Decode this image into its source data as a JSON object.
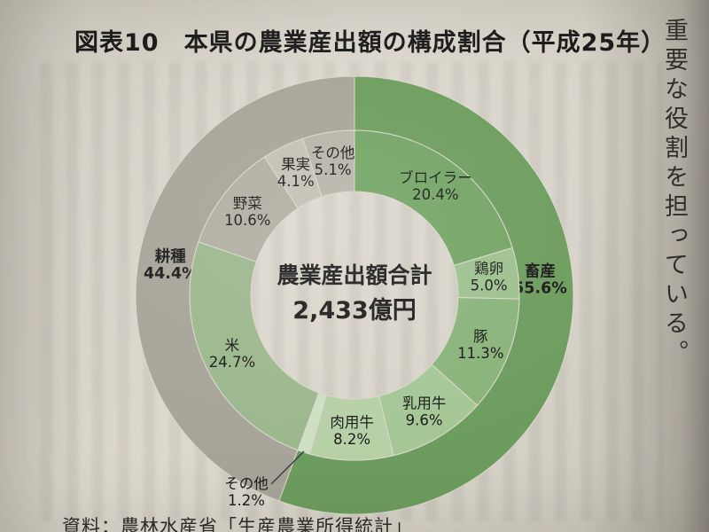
{
  "page": {
    "title": "図表10　本県の農業産出額の構成割合（平成25年）",
    "source_note": "資料：農林水産省「生産農業所得統計」",
    "adjacent_column_text": "重要な役割を担っている。"
  },
  "chart_data": {
    "type": "pie",
    "subtype": "nested_donut",
    "title": "図表10　本県の農業産出額の構成割合（平成25年）",
    "unit": "%",
    "center_label": {
      "title": "農業産出額合計",
      "value": "2,433億円",
      "total": 2433,
      "total_unit": "億円"
    },
    "rings": {
      "outer_groups": [
        {
          "name": "畜産",
          "value": 55.6,
          "color": "#6d9d5e",
          "label_angle_deg": 86
        },
        {
          "name": "耕種",
          "value": 44.4,
          "color": "#a7a499",
          "label_angle_deg": 278.5
        }
      ],
      "inner_segments": [
        {
          "name": "ブロイラー",
          "value": 20.4,
          "color": "#74a565",
          "group": "畜産"
        },
        {
          "name": "鶏卵",
          "value": 5.0,
          "color": "#9ec18f",
          "group": "畜産"
        },
        {
          "name": "豚",
          "value": 11.3,
          "color": "#8ab47a",
          "group": "畜産"
        },
        {
          "name": "乳用牛",
          "value": 9.6,
          "color": "#a5c796",
          "group": "畜産"
        },
        {
          "name": "肉用牛",
          "value": 8.2,
          "color": "#b7d0a6",
          "group": "畜産"
        },
        {
          "name": "その他",
          "value": 1.2,
          "color": "#cfdfc2",
          "group": "畜産",
          "label_outside": true
        },
        {
          "name": "米",
          "value": 24.7,
          "color": "#9cb78d",
          "group": "耕種"
        },
        {
          "name": "野菜",
          "value": 10.6,
          "color": "#b1aea2",
          "group": "耕種"
        },
        {
          "name": "果実",
          "value": 4.1,
          "color": "#c3c0b4",
          "group": "耕種"
        },
        {
          "name": "その他",
          "value": 5.1,
          "color": "#b7b4a8",
          "group": "耕種"
        }
      ]
    },
    "layout": {
      "start_angle_deg": 0,
      "direction": "clockwise",
      "legend": "none",
      "labels": "inside",
      "hole_shows_total": true
    }
  }
}
